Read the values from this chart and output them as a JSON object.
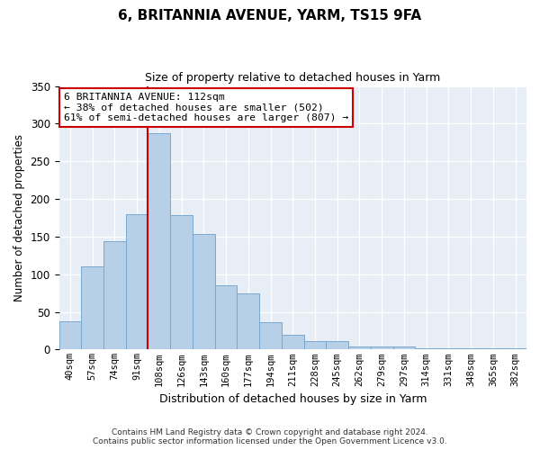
{
  "title": "6, BRITANNIA AVENUE, YARM, TS15 9FA",
  "subtitle": "Size of property relative to detached houses in Yarm",
  "xlabel": "Distribution of detached houses by size in Yarm",
  "ylabel": "Number of detached properties",
  "bar_labels": [
    "40sqm",
    "57sqm",
    "74sqm",
    "91sqm",
    "108sqm",
    "126sqm",
    "143sqm",
    "160sqm",
    "177sqm",
    "194sqm",
    "211sqm",
    "228sqm",
    "245sqm",
    "262sqm",
    "279sqm",
    "297sqm",
    "314sqm",
    "331sqm",
    "348sqm",
    "365sqm",
    "382sqm"
  ],
  "bar_values": [
    38,
    110,
    144,
    180,
    287,
    178,
    153,
    85,
    74,
    36,
    20,
    11,
    11,
    4,
    4,
    4,
    2,
    2,
    2,
    2,
    2
  ],
  "highlight_index": 4,
  "bar_color_normal": "#b8cfe8",
  "bar_color_highlight": "#c8d8f0",
  "bar_edge_color": "#7aa8d0",
  "highlight_line_color": "#cc0000",
  "annotation_text": "6 BRITANNIA AVENUE: 112sqm\n← 38% of detached houses are smaller (502)\n61% of semi-detached houses are larger (807) →",
  "annotation_box_color": "#ffffff",
  "annotation_box_edge": "#cc0000",
  "ylim": [
    0,
    350
  ],
  "yticks": [
    0,
    50,
    100,
    150,
    200,
    250,
    300,
    350
  ],
  "footer_line1": "Contains HM Land Registry data © Crown copyright and database right 2024.",
  "footer_line2": "Contains public sector information licensed under the Open Government Licence v3.0.",
  "bg_color": "#e8eef5"
}
